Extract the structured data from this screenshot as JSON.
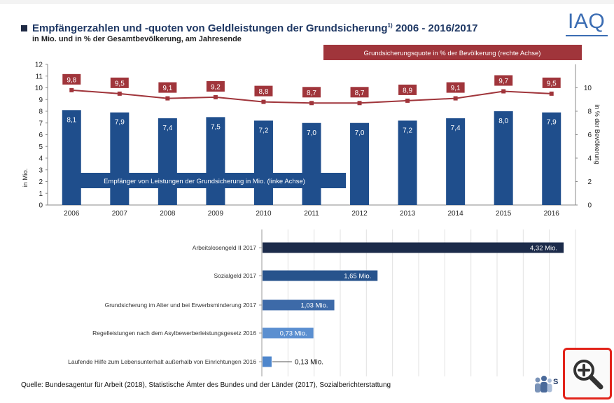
{
  "header": {
    "title": "Empfängerzahlen und -quoten von Geldleistungen der Grundsicherung",
    "title_footnote": "1)",
    "title_years": "2006 - 2016/2017",
    "subtitle": "in Mio. und in % der Gesamtbevölkerung, am Jahresende",
    "logo_text": "IAQ"
  },
  "chart_data": [
    {
      "type": "bar",
      "categories": [
        "2006",
        "2007",
        "2008",
        "2009",
        "2010",
        "2011",
        "2012",
        "2013",
        "2014",
        "2015",
        "2016"
      ],
      "series": [
        {
          "name": "Empfänger von Leistungen der Grundsicherung in Mio. (linke Achse)",
          "type": "bar",
          "axis": "left",
          "values": [
            8.1,
            7.9,
            7.4,
            7.5,
            7.2,
            7.0,
            7.0,
            7.2,
            7.4,
            8.0,
            7.9
          ],
          "labels": [
            "8,1",
            "7,9",
            "7,4",
            "7,5",
            "7,2",
            "7,0",
            "7,0",
            "7,2",
            "7,4",
            "8,0",
            "7,9"
          ]
        },
        {
          "name": "Grundsicherungsquote in % der Bevölkerung (rechte Achse)",
          "type": "line",
          "axis": "right",
          "values": [
            9.8,
            9.5,
            9.1,
            9.2,
            8.8,
            8.7,
            8.7,
            8.9,
            9.1,
            9.7,
            9.5
          ],
          "labels": [
            "9,8",
            "9,5",
            "9,1",
            "9,2",
            "8,8",
            "8,7",
            "8,7",
            "8,9",
            "9,1",
            "9,7",
            "9,5"
          ]
        }
      ],
      "ylabel": "in Mio.",
      "ylim": [
        0,
        12
      ],
      "yticks": [
        "0",
        "1",
        "2",
        "3",
        "4",
        "5",
        "6",
        "7",
        "8",
        "9",
        "10",
        "11",
        "12"
      ],
      "y2label": "in % der Bevölkerung",
      "y2lim": [
        0,
        12
      ],
      "y2ticks": [
        "0",
        "2",
        "4",
        "6",
        "8",
        "10"
      ],
      "grid": false
    },
    {
      "type": "bar",
      "orientation": "horizontal",
      "categories": [
        "Arbeitslosengeld II 2017",
        "Sozialgeld 2017",
        "Grundsicherung im Alter und bei Erwerbsminderung 2017",
        "Regelleistungen nach dem Asylbewerberleistungsgesetz 2016",
        "Laufende Hilfe zum Lebensunterhalt außerhalb von Einrichtungen 2016"
      ],
      "values": [
        4.32,
        1.65,
        1.03,
        0.73,
        0.13
      ],
      "labels": [
        "4,32 Mio.",
        "1,65 Mio.",
        "1,03 Mio.",
        "0,73 Mio.",
        "0,13 Mio."
      ],
      "colors": [
        "#1c2b4a",
        "#27538c",
        "#3d6aa8",
        "#5b8fd0",
        "#4e86cc"
      ],
      "xlim": [
        0,
        4.5
      ],
      "grid": true
    }
  ],
  "colors": {
    "bar": "#1f4e8c",
    "line": "#a0353b",
    "accent_red": "#e2231a"
  },
  "footer": {
    "source": "Quelle: Bundesagentur für Arbeit (2018), Statistische Ämter des Bundes und der Länder (2017), Sozialberichterstattung"
  },
  "icons": {
    "zoom": "zoom-in-icon",
    "people": "people-group-icon"
  },
  "people_label": "S"
}
